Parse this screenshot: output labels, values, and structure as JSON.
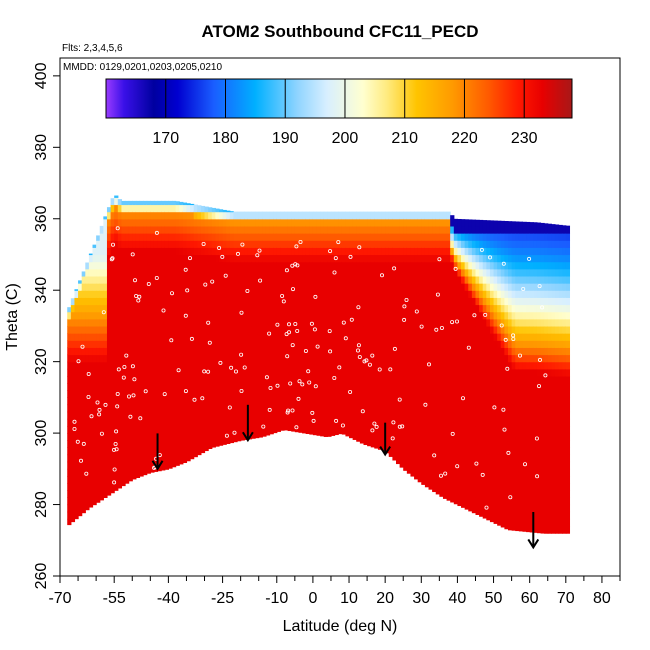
{
  "chart_data": {
    "type": "heatmap",
    "title": "ATOM2 Southbound CFC11_PECD",
    "subtitle_flights": "Flts: 2,3,4,5,6",
    "subtitle_dates": "MMDD: 0129,0201,0203,0205,0210",
    "xlabel": "Latitude (deg N)",
    "ylabel": "Theta (C)",
    "xlim": [
      -70,
      85
    ],
    "ylim": [
      260,
      405
    ],
    "x_ticks": [
      -70,
      -55,
      -40,
      -25,
      -10,
      0,
      10,
      20,
      30,
      40,
      50,
      60,
      70,
      80
    ],
    "x_tick_labels": [
      "-70",
      "-55",
      "-40",
      "-25",
      "-10",
      "0",
      "10",
      "20",
      "30",
      "40",
      "50",
      "60",
      "70",
      "80"
    ],
    "x_minor_ticks": [
      -65,
      -60,
      -50,
      -45,
      -35,
      -30,
      -20,
      -15,
      -5,
      5,
      15,
      25,
      35,
      45,
      55,
      65,
      75,
      85
    ],
    "y_ticks": [
      260,
      280,
      300,
      320,
      340,
      360,
      380,
      400
    ],
    "y_tick_labels": [
      "260",
      "280",
      "300",
      "320",
      "340",
      "360",
      "380",
      "400"
    ],
    "colorbar": {
      "min": 160,
      "max": 238,
      "ticks": [
        170,
        180,
        190,
        200,
        210,
        220,
        230
      ],
      "tick_labels": [
        "170",
        "180",
        "190",
        "200",
        "210",
        "220",
        "230"
      ],
      "divisions": [
        170,
        180,
        190,
        200,
        210,
        220,
        230
      ],
      "colors": [
        {
          "v": 160,
          "c": "#9a3cff"
        },
        {
          "v": 163,
          "c": "#3a10e8"
        },
        {
          "v": 168,
          "c": "#0000a0"
        },
        {
          "v": 172,
          "c": "#0000d0"
        },
        {
          "v": 178,
          "c": "#1a5dff"
        },
        {
          "v": 185,
          "c": "#00b0ff"
        },
        {
          "v": 192,
          "c": "#8fd4ff"
        },
        {
          "v": 197,
          "c": "#d8efff"
        },
        {
          "v": 203,
          "c": "#ffffd0"
        },
        {
          "v": 207,
          "c": "#ffeb80"
        },
        {
          "v": 212,
          "c": "#ffc400"
        },
        {
          "v": 218,
          "c": "#ff9a00"
        },
        {
          "v": 224,
          "c": "#ff5a00"
        },
        {
          "v": 229,
          "c": "#ff1800"
        },
        {
          "v": 233,
          "c": "#e80000"
        },
        {
          "v": 238,
          "c": "#a81818"
        }
      ]
    },
    "data_bottom_boundary": [
      {
        "lat": -68,
        "theta": 274
      },
      {
        "lat": -62,
        "theta": 279
      },
      {
        "lat": -56,
        "theta": 283
      },
      {
        "lat": -50,
        "theta": 287
      },
      {
        "lat": -45,
        "theta": 289
      },
      {
        "lat": -40,
        "theta": 290
      },
      {
        "lat": -35,
        "theta": 292
      },
      {
        "lat": -28,
        "theta": 296
      },
      {
        "lat": -20,
        "theta": 298
      },
      {
        "lat": -14,
        "theta": 299
      },
      {
        "lat": -8,
        "theta": 301
      },
      {
        "lat": -2,
        "theta": 300
      },
      {
        "lat": 4,
        "theta": 299
      },
      {
        "lat": 8,
        "theta": 300
      },
      {
        "lat": 14,
        "theta": 297
      },
      {
        "lat": 20,
        "theta": 295
      },
      {
        "lat": 25,
        "theta": 290
      },
      {
        "lat": 30,
        "theta": 286
      },
      {
        "lat": 36,
        "theta": 282
      },
      {
        "lat": 42,
        "theta": 279
      },
      {
        "lat": 48,
        "theta": 276
      },
      {
        "lat": 54,
        "theta": 273
      },
      {
        "lat": 64,
        "theta": 272
      },
      {
        "lat": 71,
        "theta": 272
      }
    ],
    "data_top_boundary": [
      {
        "lat": -68,
        "theta": 334
      },
      {
        "lat": -64,
        "theta": 344
      },
      {
        "lat": -60,
        "theta": 354
      },
      {
        "lat": -57,
        "theta": 362
      },
      {
        "lat": -55,
        "theta": 367
      },
      {
        "lat": -53,
        "theta": 365
      },
      {
        "lat": -38,
        "theta": 365
      },
      {
        "lat": -22,
        "theta": 362
      },
      {
        "lat": 38,
        "theta": 362
      },
      {
        "lat": 39,
        "theta": 360
      },
      {
        "lat": 62,
        "theta": 359
      },
      {
        "lat": 71,
        "theta": 358
      }
    ],
    "data_right_edge_lat": 71,
    "arrows": [
      {
        "lat": -43,
        "theta": 296,
        "to_theta": 290
      },
      {
        "lat": -18,
        "theta": 304,
        "to_theta": 298
      },
      {
        "lat": 20,
        "theta": 299,
        "to_theta": 294
      },
      {
        "lat": 61,
        "theta": 274,
        "to_theta": 268
      }
    ],
    "field_description": {
      "interior_value": 233,
      "upper_band_value": 215,
      "top_band_value": 185,
      "tropopause_blue_value": 175,
      "polar_north_lat": 38,
      "polar_south_lat": -57
    }
  }
}
